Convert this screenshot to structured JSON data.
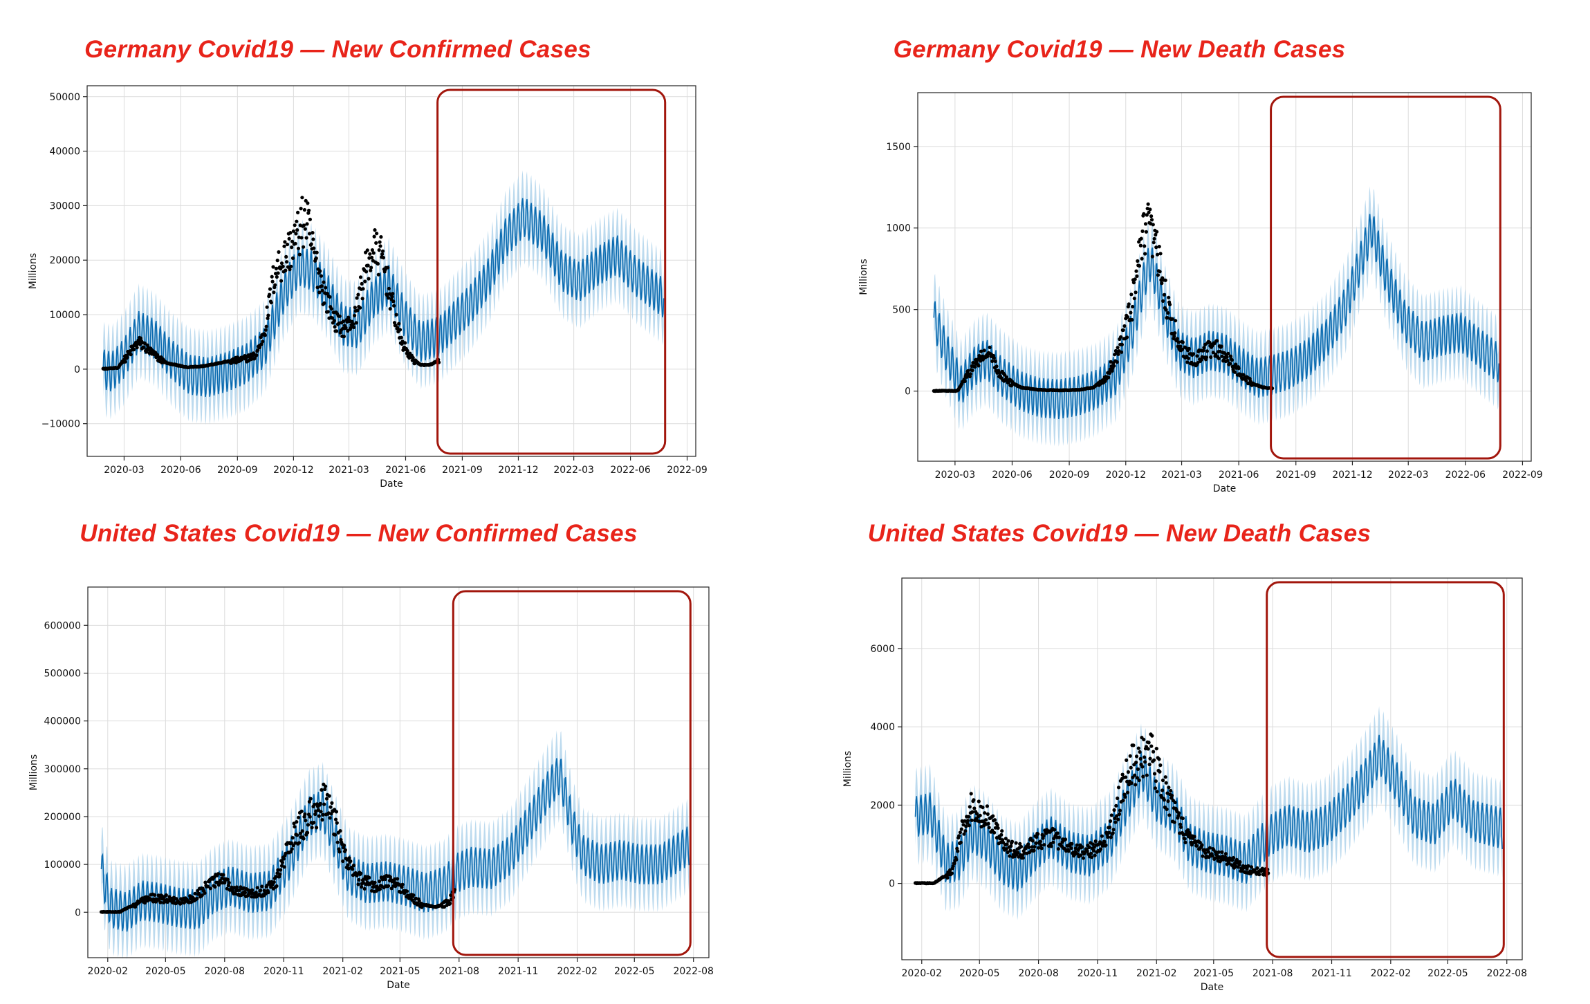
{
  "chart_data": [
    {
      "type": "scatter",
      "title": "Germany Covid19 — New Confirmed Cases",
      "xlabel": "Date",
      "ylabel": "Millions",
      "xlim": [
        "2020-01-01",
        "2022-09-15"
      ],
      "ylim": [
        -16000,
        52000
      ],
      "yticks": [
        -10000,
        0,
        10000,
        20000,
        30000,
        40000,
        50000
      ],
      "ytick_labels": [
        "−10000",
        "0",
        "10000",
        "20000",
        "30000",
        "40000",
        "50000"
      ],
      "xticks": [
        "2020-03",
        "2020-06",
        "2020-09",
        "2020-12",
        "2021-03",
        "2021-06",
        "2021-09",
        "2021-12",
        "2022-03",
        "2022-06",
        "2022-09"
      ],
      "grid": true,
      "history_end": "2021-07-25",
      "forecast_end": "2022-07-25",
      "forecast_box": [
        "2021-07-25",
        "2022-07-25"
      ],
      "series": [
        {
          "name": "actual",
          "kind": "points",
          "x": [
            "2020-01-27",
            "2020-02-20",
            "2020-03-10",
            "2020-03-25",
            "2020-04-05",
            "2020-04-20",
            "2020-05-10",
            "2020-06-10",
            "2020-07-10",
            "2020-08-10",
            "2020-09-10",
            "2020-10-01",
            "2020-10-15",
            "2020-11-01",
            "2020-11-20",
            "2020-12-10",
            "2020-12-20",
            "2021-01-05",
            "2021-01-20",
            "2021-02-05",
            "2021-02-20",
            "2021-03-10",
            "2021-03-25",
            "2021-04-10",
            "2021-04-25",
            "2021-05-10",
            "2021-05-25",
            "2021-06-10",
            "2021-06-25",
            "2021-07-10",
            "2021-07-25"
          ],
          "values": [
            0,
            200,
            3000,
            5000,
            4000,
            2500,
            1000,
            300,
            500,
            1200,
            1800,
            2500,
            7000,
            18000,
            21000,
            25000,
            28000,
            20000,
            14000,
            9000,
            7500,
            9000,
            17000,
            22000,
            20000,
            12000,
            5000,
            2000,
            700,
            700,
            1500
          ]
        },
        {
          "name": "forecast",
          "kind": "line",
          "x": [
            "2020-01-27",
            "2020-02-10",
            "2020-03-01",
            "2020-03-25",
            "2020-04-20",
            "2020-05-15",
            "2020-06-15",
            "2020-07-15",
            "2020-08-15",
            "2020-09-15",
            "2020-10-15",
            "2020-11-15",
            "2020-12-10",
            "2021-01-01",
            "2021-01-25",
            "2021-02-20",
            "2021-03-15",
            "2021-04-10",
            "2021-05-05",
            "2021-06-01",
            "2021-06-25",
            "2021-07-25",
            "2021-08-20",
            "2021-09-15",
            "2021-10-15",
            "2021-11-10",
            "2021-12-10",
            "2022-01-10",
            "2022-02-10",
            "2022-03-10",
            "2022-04-10",
            "2022-05-10",
            "2022-06-10",
            "2022-07-25"
          ],
          "values": [
            0,
            -500,
            2000,
            7000,
            5500,
            2000,
            -1000,
            -1500,
            -500,
            1000,
            4000,
            14000,
            19000,
            18000,
            14000,
            8000,
            7500,
            13000,
            15500,
            9000,
            5000,
            6000,
            9000,
            12000,
            17000,
            24000,
            28000,
            25000,
            18000,
            16000,
            19000,
            21000,
            17000,
            13000
          ]
        }
      ]
    },
    {
      "type": "scatter",
      "title": "Germany Covid19 — New Death Cases",
      "xlabel": "Date",
      "ylabel": "Millions",
      "xlim": [
        "2020-01-01",
        "2022-09-15"
      ],
      "ylim": [
        -430,
        1830
      ],
      "yticks": [
        0,
        500,
        1000,
        1500
      ],
      "ytick_labels": [
        "0",
        "500",
        "1000",
        "1500"
      ],
      "xticks": [
        "2020-03",
        "2020-06",
        "2020-09",
        "2020-12",
        "2021-03",
        "2021-06",
        "2021-09",
        "2021-12",
        "2022-03",
        "2022-06",
        "2022-09"
      ],
      "grid": true,
      "history_end": "2021-07-25",
      "forecast_end": "2022-07-25",
      "forecast_box": [
        "2021-07-25",
        "2022-07-25"
      ],
      "series": [
        {
          "name": "actual",
          "kind": "points",
          "x": [
            "2020-01-27",
            "2020-03-05",
            "2020-03-25",
            "2020-04-10",
            "2020-04-25",
            "2020-05-10",
            "2020-05-25",
            "2020-06-15",
            "2020-07-15",
            "2020-08-15",
            "2020-09-15",
            "2020-10-10",
            "2020-10-30",
            "2020-11-20",
            "2020-12-10",
            "2020-12-25",
            "2021-01-05",
            "2021-01-15",
            "2021-01-28",
            "2021-02-10",
            "2021-02-25",
            "2021-03-10",
            "2021-03-25",
            "2021-04-10",
            "2021-04-25",
            "2021-05-10",
            "2021-05-25",
            "2021-06-10",
            "2021-06-25",
            "2021-07-10",
            "2021-07-25"
          ],
          "values": [
            0,
            0,
            120,
            200,
            230,
            120,
            60,
            20,
            5,
            3,
            5,
            20,
            80,
            250,
            500,
            850,
            1000,
            900,
            700,
            450,
            300,
            220,
            200,
            250,
            260,
            220,
            150,
            80,
            40,
            20,
            15
          ]
        },
        {
          "name": "forecast",
          "kind": "line",
          "x": [
            "2020-01-27",
            "2020-02-15",
            "2020-03-10",
            "2020-04-01",
            "2020-04-20",
            "2020-05-15",
            "2020-06-15",
            "2020-07-15",
            "2020-08-15",
            "2020-09-15",
            "2020-10-15",
            "2020-11-15",
            "2020-12-10",
            "2021-01-01",
            "2021-01-10",
            "2021-02-01",
            "2021-02-25",
            "2021-03-20",
            "2021-04-15",
            "2021-05-10",
            "2021-06-05",
            "2021-07-01",
            "2021-07-25",
            "2021-08-20",
            "2021-09-20",
            "2021-10-20",
            "2021-11-20",
            "2021-12-15",
            "2022-01-01",
            "2022-01-25",
            "2022-02-25",
            "2022-03-25",
            "2022-04-25",
            "2022-05-25",
            "2022-06-25",
            "2022-07-25"
          ],
          "values": [
            450,
            250,
            30,
            150,
            200,
            90,
            0,
            -40,
            -50,
            -30,
            10,
            100,
            350,
            700,
            800,
            500,
            250,
            200,
            250,
            230,
            150,
            80,
            100,
            130,
            200,
            320,
            520,
            800,
            1000,
            700,
            420,
            300,
            340,
            360,
            260,
            170
          ]
        }
      ]
    },
    {
      "type": "scatter",
      "title": "United States Covid19 — New Confirmed Cases",
      "xlabel": "Date",
      "ylabel": "Millions",
      "xlim": [
        "2020-01-01",
        "2022-08-25"
      ],
      "ylim": [
        -95000,
        680000
      ],
      "yticks": [
        0,
        100000,
        200000,
        300000,
        400000,
        500000,
        600000
      ],
      "ytick_labels": [
        "0",
        "100000",
        "200000",
        "300000",
        "400000",
        "500000",
        "600000"
      ],
      "xticks": [
        "2020-02",
        "2020-05",
        "2020-08",
        "2020-11",
        "2021-02",
        "2021-05",
        "2021-08",
        "2021-11",
        "2022-02",
        "2022-05",
        "2022-08"
      ],
      "grid": true,
      "history_end": "2021-07-25",
      "forecast_end": "2022-07-25",
      "forecast_box": [
        "2021-07-25",
        "2022-07-25"
      ],
      "series": [
        {
          "name": "actual",
          "kind": "points",
          "x": [
            "2020-01-22",
            "2020-02-20",
            "2020-03-20",
            "2020-04-10",
            "2020-05-01",
            "2020-05-25",
            "2020-06-15",
            "2020-07-10",
            "2020-07-25",
            "2020-08-15",
            "2020-09-10",
            "2020-10-01",
            "2020-10-20",
            "2020-11-10",
            "2020-12-01",
            "2020-12-20",
            "2021-01-05",
            "2021-01-20",
            "2021-02-05",
            "2021-02-25",
            "2021-03-20",
            "2021-04-10",
            "2021-04-25",
            "2021-05-15",
            "2021-06-05",
            "2021-06-25",
            "2021-07-15",
            "2021-07-25"
          ],
          "values": [
            0,
            0,
            20000,
            30000,
            28000,
            22000,
            30000,
            60000,
            68000,
            50000,
            38000,
            45000,
            65000,
            140000,
            185000,
            210000,
            230000,
            190000,
            110000,
            70000,
            55000,
            65000,
            60000,
            35000,
            15000,
            10000,
            20000,
            40000
          ]
        },
        {
          "name": "forecast",
          "kind": "line",
          "x": [
            "2020-01-22",
            "2020-02-05",
            "2020-03-01",
            "2020-03-25",
            "2020-04-20",
            "2020-05-20",
            "2020-06-20",
            "2020-07-15",
            "2020-08-10",
            "2020-09-10",
            "2020-10-10",
            "2020-11-10",
            "2020-12-10",
            "2021-01-01",
            "2021-01-20",
            "2021-02-10",
            "2021-03-10",
            "2021-04-10",
            "2021-05-10",
            "2021-06-10",
            "2021-07-10",
            "2021-07-25",
            "2021-08-20",
            "2021-09-20",
            "2021-10-20",
            "2021-11-20",
            "2021-12-20",
            "2022-01-05",
            "2022-01-25",
            "2022-02-10",
            "2022-03-10",
            "2022-04-10",
            "2022-05-10",
            "2022-06-10",
            "2022-07-25"
          ],
          "values": [
            90000,
            10000,
            0,
            25000,
            20000,
            10000,
            5000,
            40000,
            55000,
            40000,
            45000,
            110000,
            200000,
            215000,
            150000,
            80000,
            60000,
            65000,
            55000,
            40000,
            55000,
            80000,
            95000,
            90000,
            120000,
            190000,
            260000,
            290000,
            180000,
            120000,
            100000,
            110000,
            100000,
            100000,
            140000
          ]
        }
      ]
    },
    {
      "type": "scatter",
      "title": "United States Covid19 — New Death Cases",
      "xlabel": "Date",
      "ylabel": "Millions",
      "xlim": [
        "2020-01-01",
        "2022-08-25"
      ],
      "ylim": [
        -1950,
        7800
      ],
      "yticks": [
        0,
        2000,
        4000,
        6000
      ],
      "ytick_labels": [
        "0",
        "2000",
        "4000",
        "6000"
      ],
      "xticks": [
        "2020-02",
        "2020-05",
        "2020-08",
        "2020-11",
        "2021-02",
        "2021-05",
        "2021-08",
        "2021-11",
        "2022-02",
        "2022-05",
        "2022-08"
      ],
      "grid": true,
      "history_end": "2021-07-25",
      "forecast_end": "2022-07-25",
      "forecast_box": [
        "2021-07-25",
        "2022-07-25"
      ],
      "series": [
        {
          "name": "actual",
          "kind": "points",
          "x": [
            "2020-01-22",
            "2020-02-20",
            "2020-03-20",
            "2020-04-05",
            "2020-04-20",
            "2020-05-05",
            "2020-05-25",
            "2020-06-15",
            "2020-07-10",
            "2020-07-30",
            "2020-08-20",
            "2020-09-15",
            "2020-10-10",
            "2020-11-01",
            "2020-11-20",
            "2020-12-10",
            "2020-12-25",
            "2021-01-10",
            "2021-01-25",
            "2021-02-10",
            "2021-03-01",
            "2021-03-20",
            "2021-04-10",
            "2021-05-01",
            "2021-05-25",
            "2021-06-15",
            "2021-07-05",
            "2021-07-25"
          ],
          "values": [
            0,
            0,
            300,
            1500,
            2000,
            1800,
            1400,
            900,
            800,
            1100,
            1200,
            900,
            800,
            900,
            1300,
            2400,
            3000,
            3300,
            3200,
            2500,
            1800,
            1200,
            900,
            750,
            600,
            400,
            300,
            300
          ]
        },
        {
          "name": "forecast",
          "kind": "line",
          "x": [
            "2020-01-22",
            "2020-02-15",
            "2020-03-10",
            "2020-03-30",
            "2020-04-20",
            "2020-05-10",
            "2020-06-05",
            "2020-07-01",
            "2020-07-25",
            "2020-08-20",
            "2020-09-20",
            "2020-10-20",
            "2020-11-20",
            "2020-12-20",
            "2021-01-10",
            "2021-02-01",
            "2021-03-01",
            "2021-03-25",
            "2021-04-20",
            "2021-05-20",
            "2021-06-20",
            "2021-07-25",
            "2021-08-25",
            "2021-09-25",
            "2021-10-25",
            "2021-11-25",
            "2021-12-25",
            "2022-01-15",
            "2022-02-10",
            "2022-03-10",
            "2022-04-10",
            "2022-05-10",
            "2022-06-10",
            "2022-07-25"
          ],
          "values": [
            1700,
            1800,
            500,
            600,
            1300,
            1100,
            500,
            300,
            800,
            1200,
            800,
            700,
            1100,
            2200,
            2900,
            2100,
            1800,
            1000,
            800,
            700,
            500,
            1200,
            1500,
            1300,
            1500,
            2000,
            2700,
            3300,
            2600,
            1700,
            1500,
            2200,
            1600,
            1400
          ]
        }
      ]
    }
  ]
}
